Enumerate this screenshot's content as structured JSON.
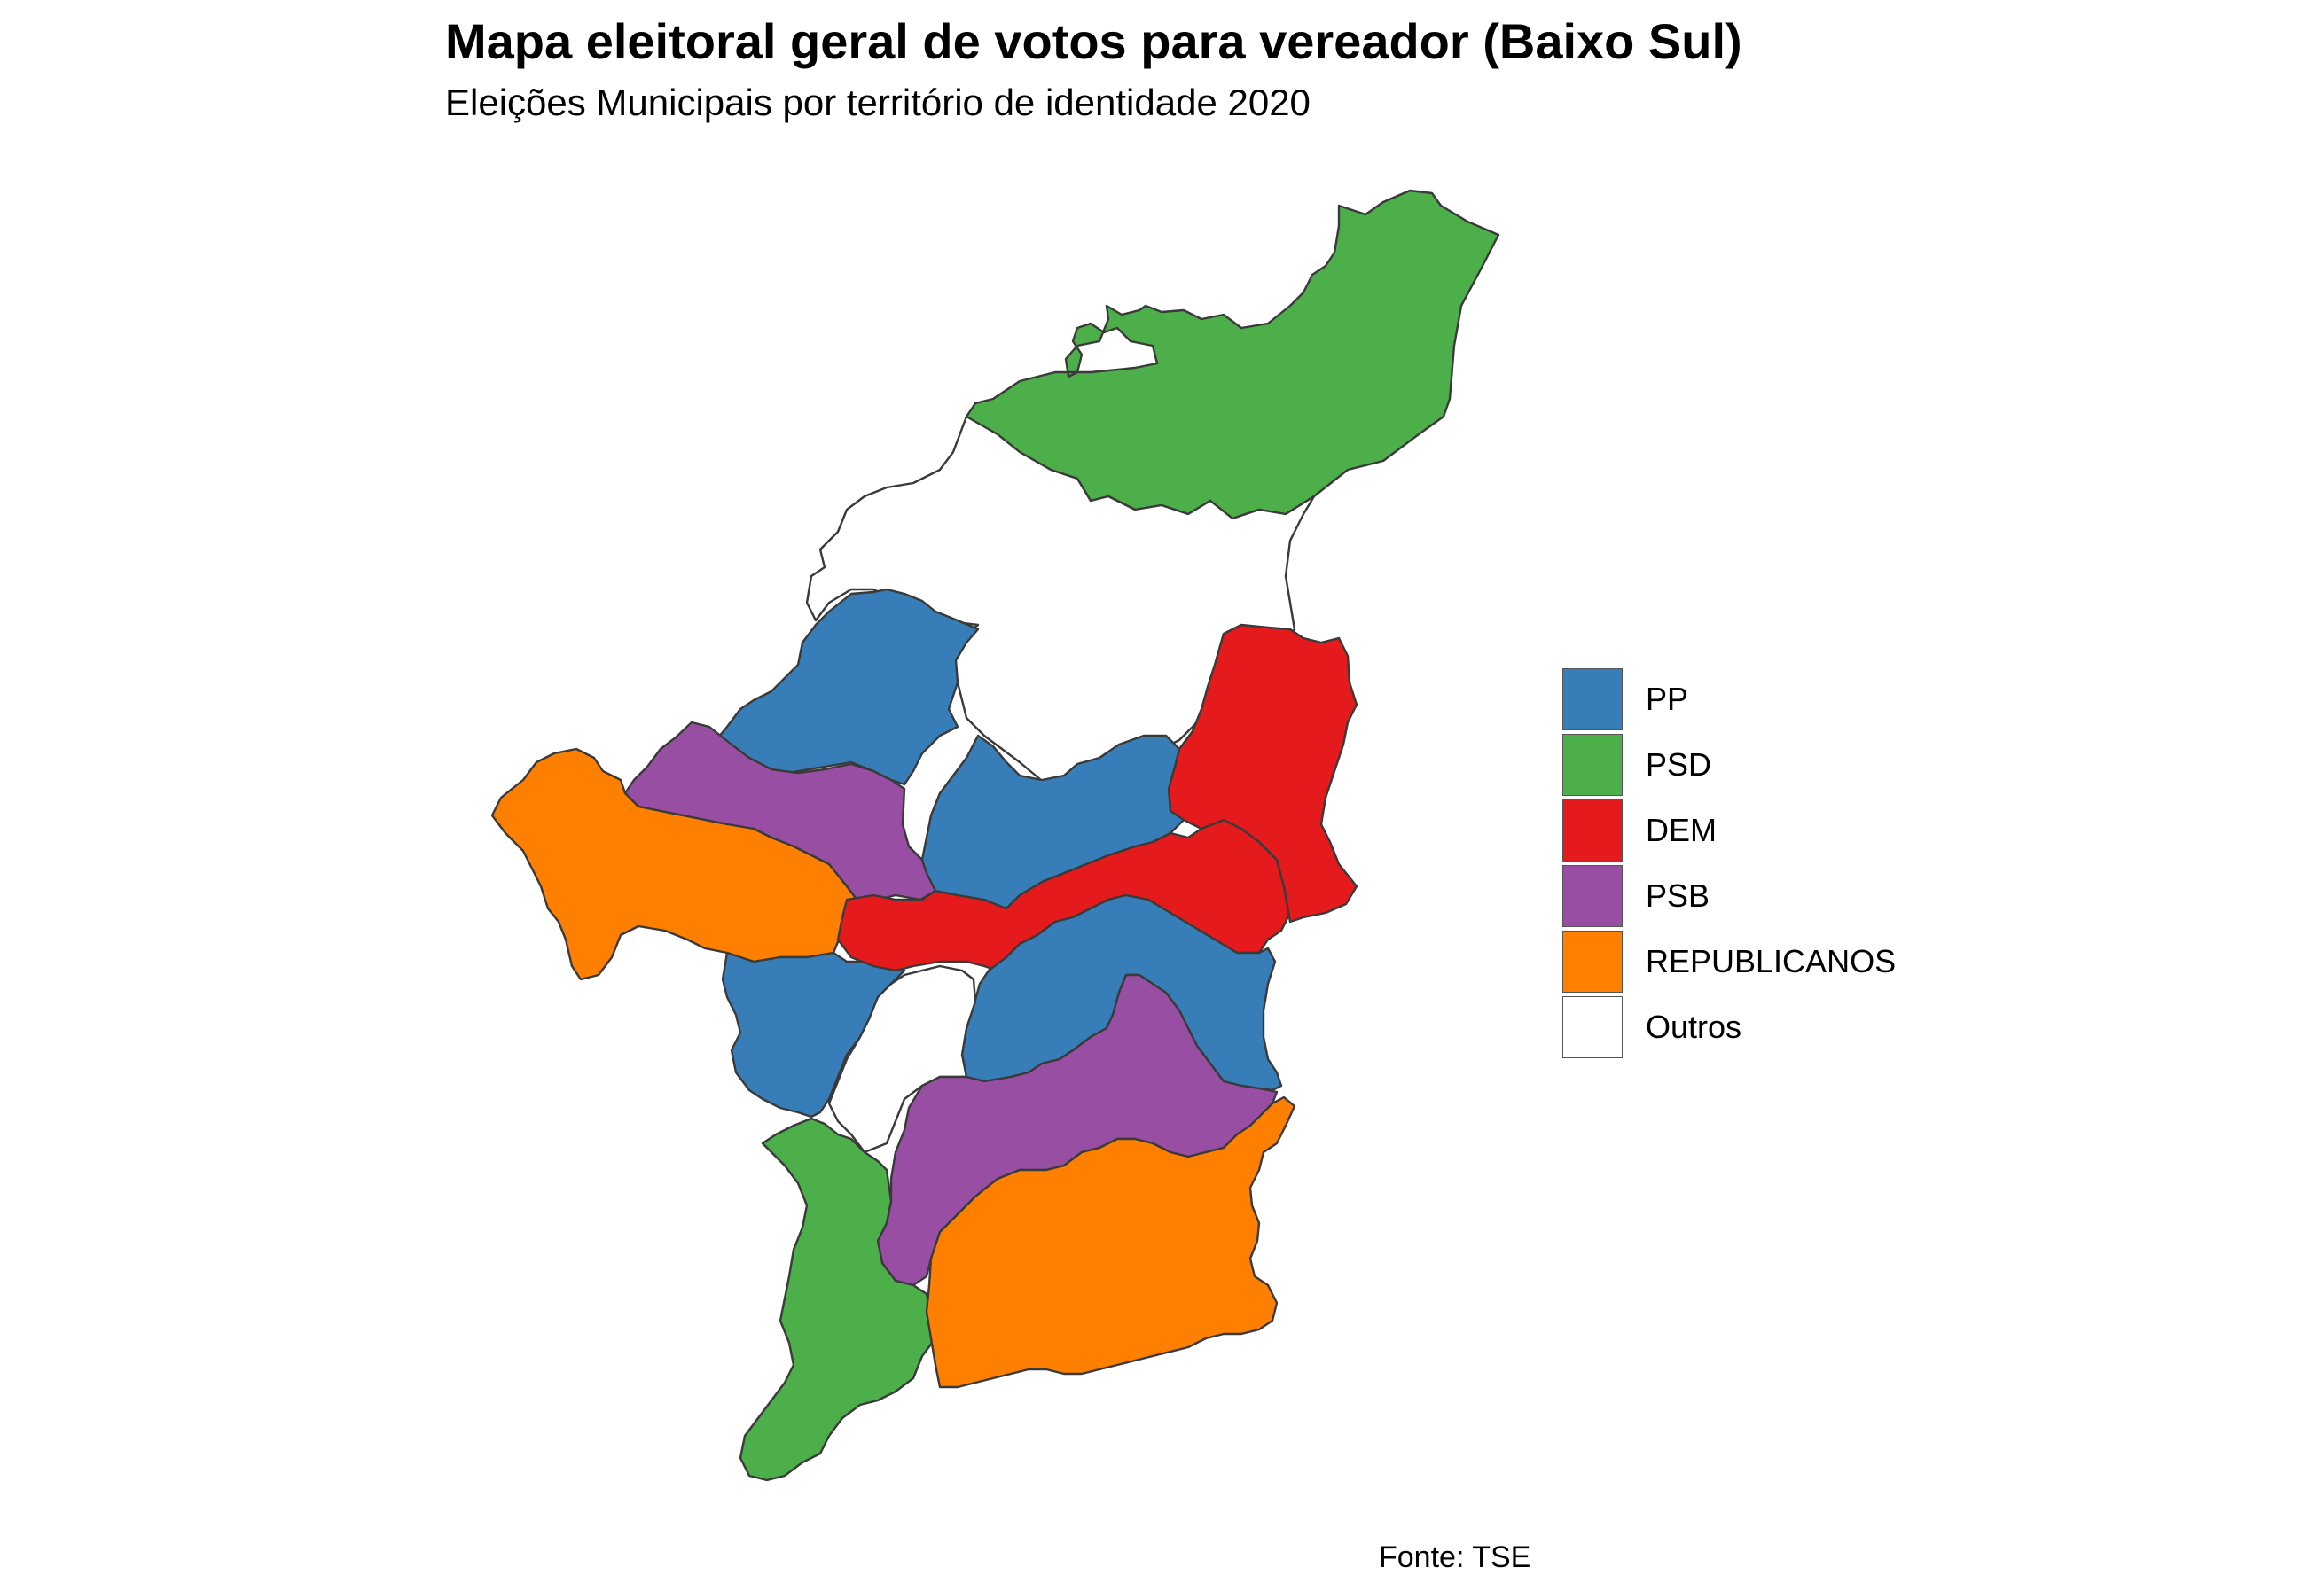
{
  "map": {
    "title": "Mapa eleitoral geral de votos para vereador (Baixo Sul)",
    "subtitle": "Eleições Municipais por território de identidade 2020",
    "caption": "Fonte: TSE",
    "legend": [
      {
        "label": "PP",
        "color": "#377eb8"
      },
      {
        "label": "PSD",
        "color": "#4daf4a"
      },
      {
        "label": "DEM",
        "color": "#e41a1c"
      },
      {
        "label": "PSB",
        "color": "#984ea3"
      },
      {
        "label": "REPUBLICANOS",
        "color": "#ff7f00"
      },
      {
        "label": "Outros",
        "color": "#ffffff"
      }
    ],
    "regions": [
      {
        "party": "PSD",
        "color": "#4daf4a"
      },
      {
        "party": "Outros",
        "color": "#ffffff"
      },
      {
        "party": "PP",
        "color": "#377eb8"
      },
      {
        "party": "PSB",
        "color": "#984ea3"
      },
      {
        "party": "REPUBLICANOS",
        "color": "#ff7f00"
      },
      {
        "party": "PP",
        "color": "#377eb8"
      },
      {
        "party": "DEM",
        "color": "#e41a1c"
      },
      {
        "party": "DEM",
        "color": "#e41a1c"
      },
      {
        "party": "PP",
        "color": "#377eb8"
      },
      {
        "party": "PP",
        "color": "#377eb8"
      },
      {
        "party": "Outros",
        "color": "#ffffff"
      },
      {
        "party": "PSB",
        "color": "#984ea3"
      },
      {
        "party": "PSD",
        "color": "#4daf4a"
      },
      {
        "party": "REPUBLICANOS",
        "color": "#ff7f00"
      }
    ]
  }
}
